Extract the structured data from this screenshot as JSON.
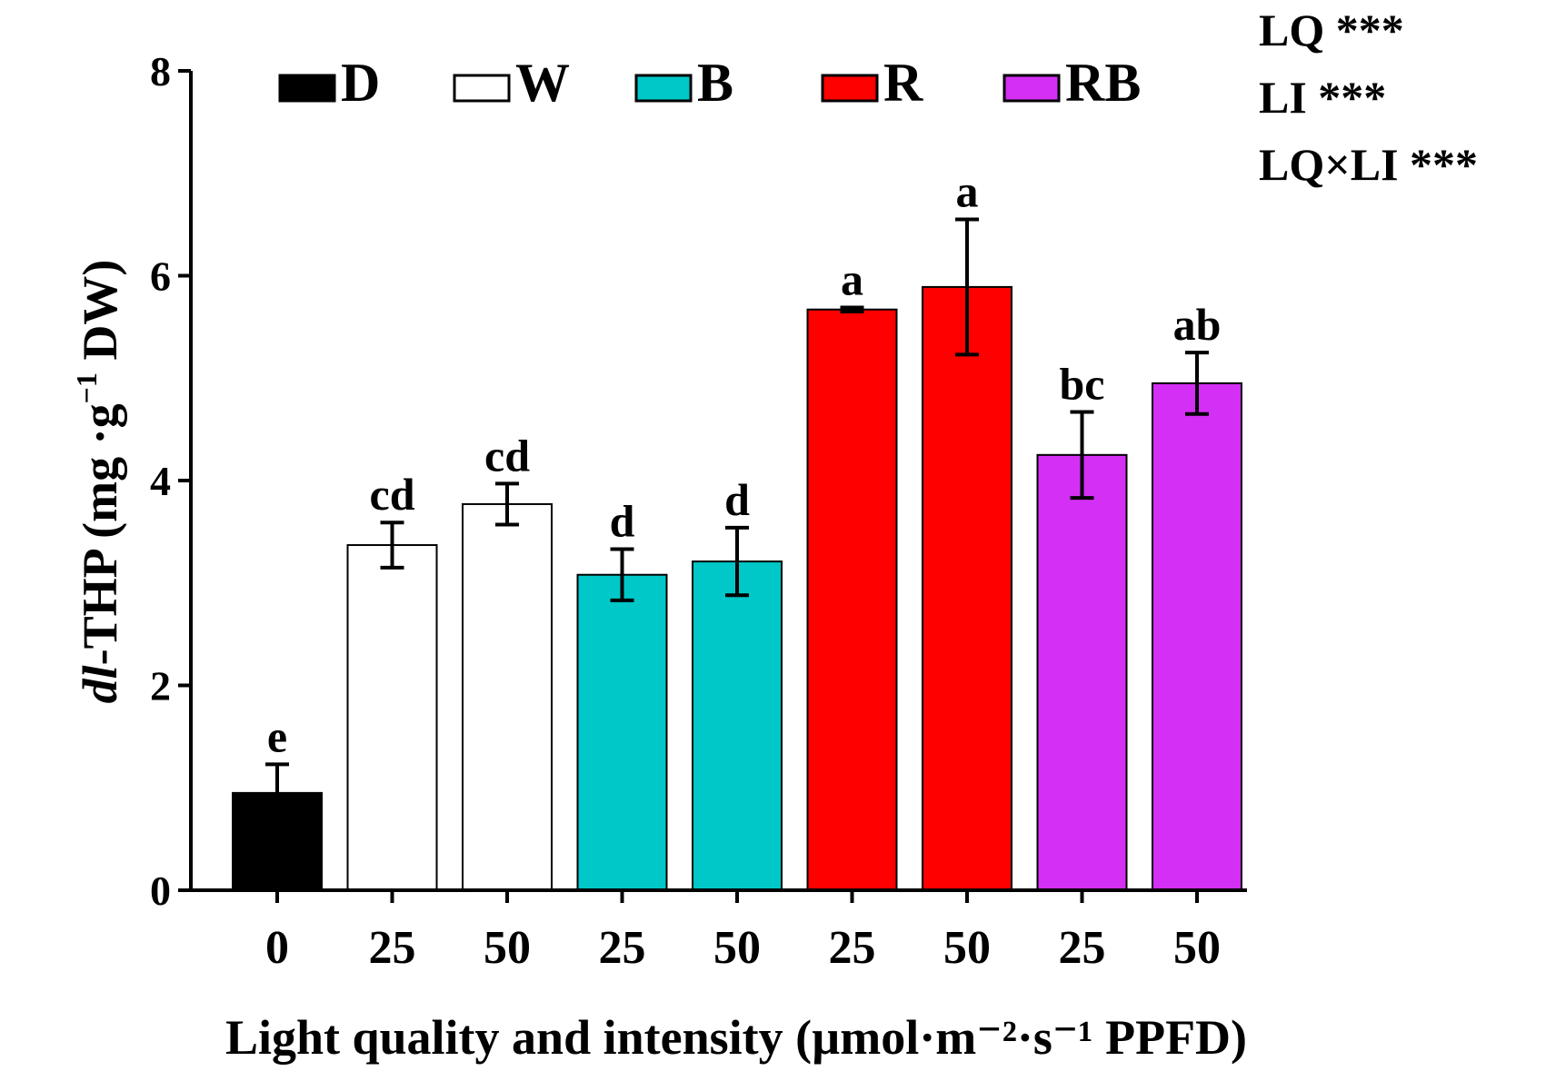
{
  "chart_data": {
    "type": "bar",
    "ylabel_italic": "dl",
    "ylabel_main": "-THP (mg ·g",
    "ylabel_sup": "−1",
    "ylabel_end": " DW)",
    "xlabel": "Light quality and intensity (µmol·m⁻²·s⁻¹ PPFD)",
    "ylim": [
      0,
      8
    ],
    "yticks": [
      "0",
      "2",
      "4",
      "6",
      "8"
    ],
    "legend": [
      {
        "name": "D",
        "color": "#000000"
      },
      {
        "name": "W",
        "color": "#ffffff"
      },
      {
        "name": "B",
        "color": "#00c8c8"
      },
      {
        "name": "R",
        "color": "#ff0000"
      },
      {
        "name": "RB",
        "color": "#d42ff5"
      }
    ],
    "bars": [
      {
        "group": "D",
        "category": "0",
        "value": 0.95,
        "error": 0.28,
        "letter": "e"
      },
      {
        "group": "W",
        "category": "25",
        "value": 3.37,
        "error": 0.22,
        "letter": "cd"
      },
      {
        "group": "W",
        "category": "50",
        "value": 3.77,
        "error": 0.2,
        "letter": "cd"
      },
      {
        "group": "B",
        "category": "25",
        "value": 3.08,
        "error": 0.25,
        "letter": "d"
      },
      {
        "group": "B",
        "category": "50",
        "value": 3.21,
        "error": 0.33,
        "letter": "d"
      },
      {
        "group": "R",
        "category": "25",
        "value": 5.67,
        "error": 0.02,
        "letter": "a"
      },
      {
        "group": "R",
        "category": "50",
        "value": 5.89,
        "error": 0.66,
        "letter": "a"
      },
      {
        "group": "RB",
        "category": "25",
        "value": 4.25,
        "error": 0.42,
        "letter": "bc"
      },
      {
        "group": "RB",
        "category": "50",
        "value": 4.95,
        "error": 0.3,
        "letter": "ab"
      }
    ],
    "stats": [
      "LQ ***",
      "LI ***",
      "LQ×LI ***"
    ]
  }
}
